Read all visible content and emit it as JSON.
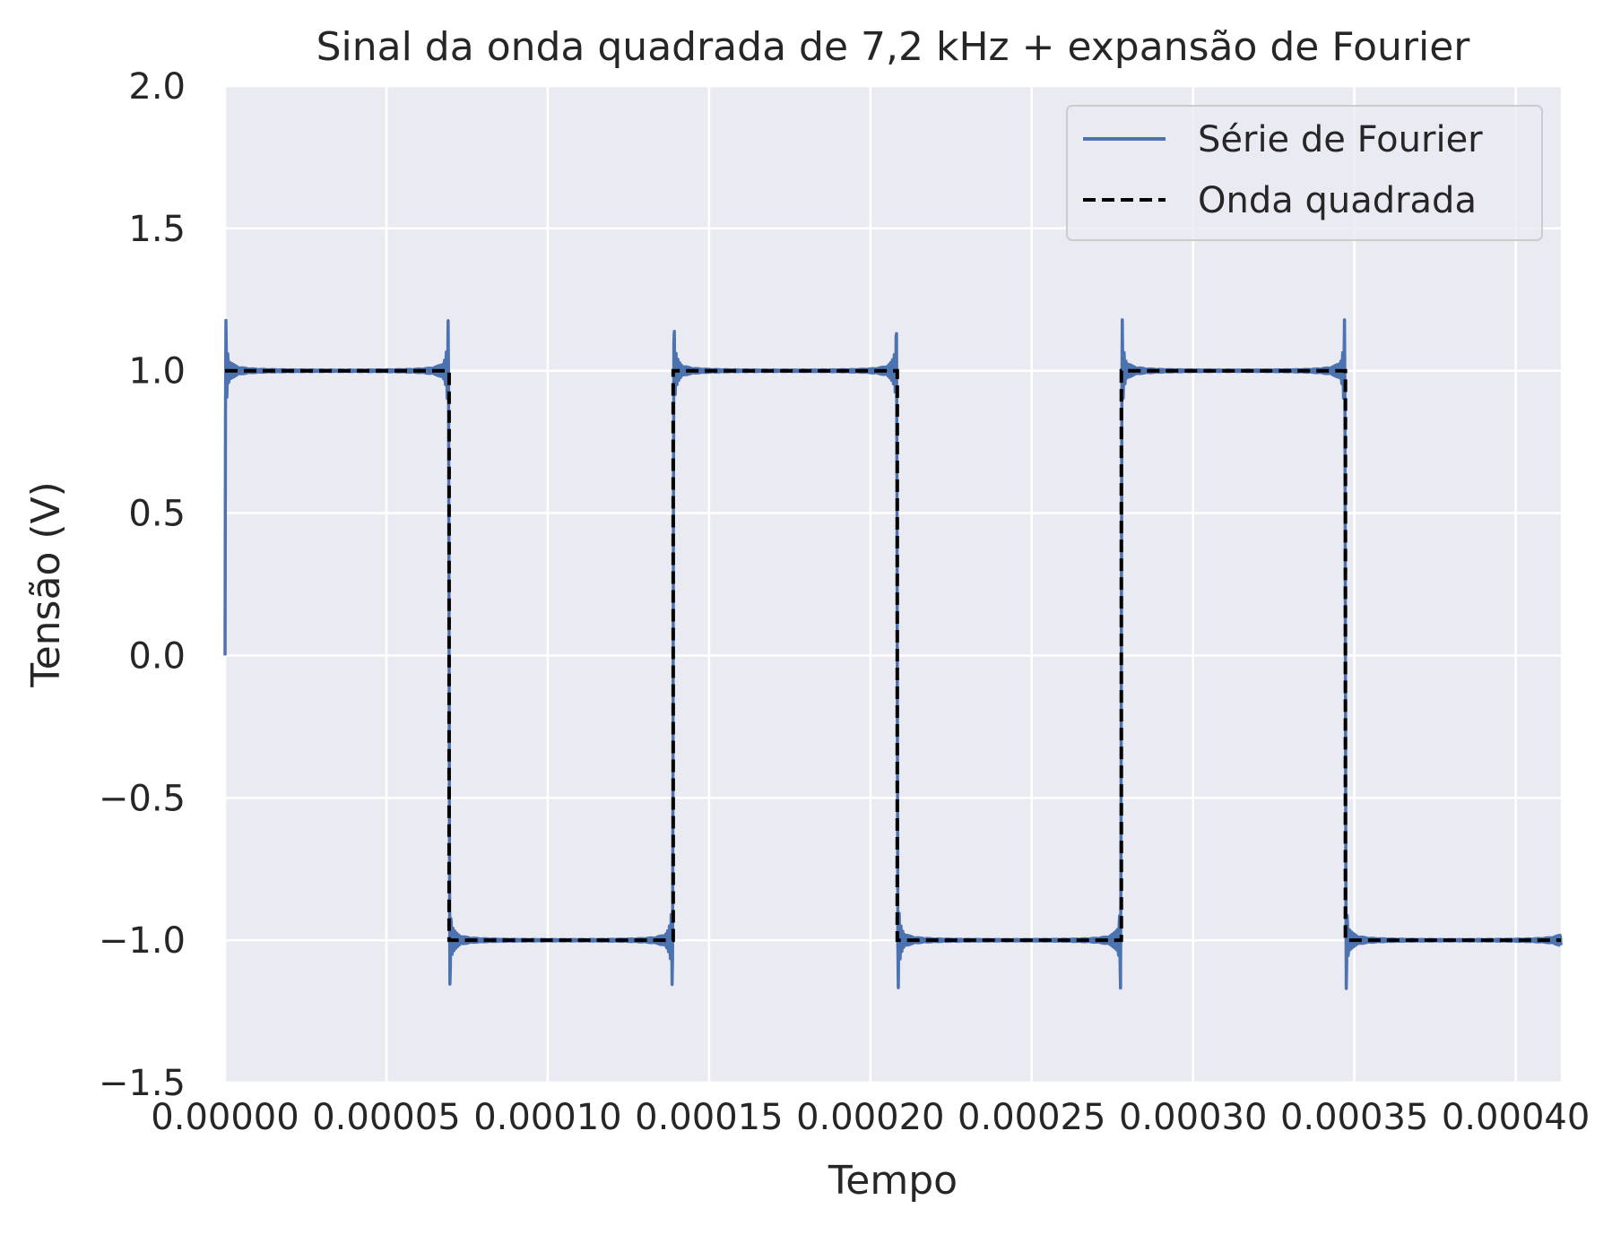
{
  "chart_data": {
    "type": "line",
    "title": "Sinal da onda quadrada de 7,2 kHz + expansão de Fourier",
    "xlabel": "Tempo",
    "ylabel": "Tensão (V)",
    "xlim": [
      0,
      0.000414
    ],
    "ylim": [
      -1.5,
      2.0
    ],
    "xticks": [
      0,
      5e-05,
      0.0001,
      0.00015,
      0.0002,
      0.00025,
      0.0003,
      0.00035,
      0.0004
    ],
    "xtick_labels": [
      "0.00000",
      "0.00005",
      "0.00010",
      "0.00015",
      "0.00020",
      "0.00025",
      "0.00030",
      "0.00035",
      "0.00040"
    ],
    "yticks": [
      -1.5,
      -1.0,
      -0.5,
      0.0,
      0.5,
      1.0,
      1.5,
      2.0
    ],
    "ytick_labels": [
      "−1.5",
      "−1.0",
      "−0.5",
      "0.0",
      "0.5",
      "1.0",
      "1.5",
      "2.0"
    ],
    "grid": true,
    "legend_position": "upper right",
    "background": "#eaeaf2",
    "grid_color": "#ffffff",
    "frequency_hz": 7200,
    "series": [
      {
        "name": "Série de Fourier",
        "color": "#4c72b0",
        "style": "solid",
        "kind": "fourier",
        "harmonics": 120,
        "amplitude": 1.0
      },
      {
        "name": "Onda quadrada",
        "color": "#000000",
        "style": "dashed",
        "kind": "square",
        "amplitude": 1.0
      }
    ]
  }
}
